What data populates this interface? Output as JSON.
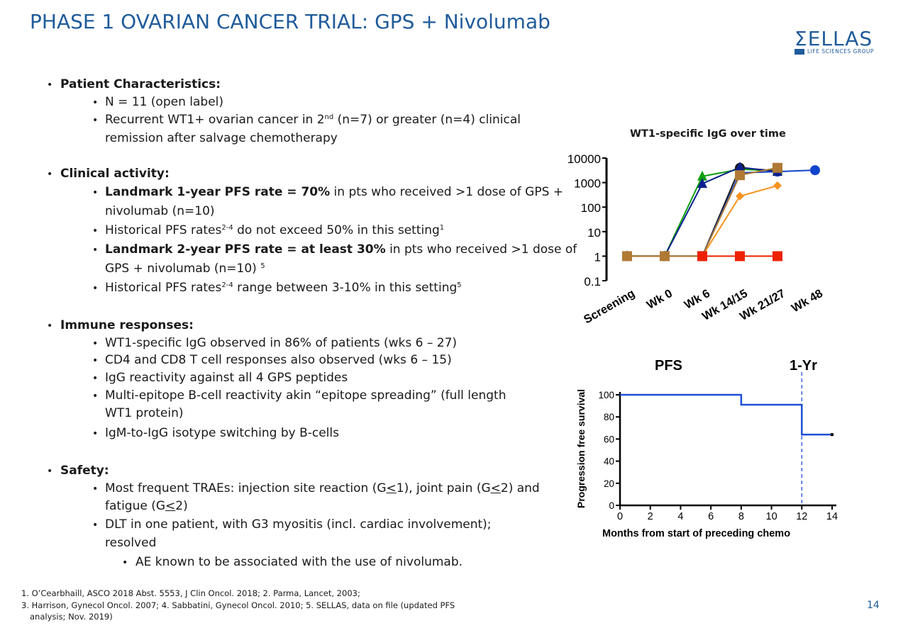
{
  "title": "PHASE 1 OVARIAN CANCER TRIAL: GPS + Nivolumab",
  "logo": {
    "name": "ΣELLAS",
    "subtitle": "LIFE SCIENCES GROUP"
  },
  "patient_characteristics": {
    "heading": "Patient Characteristics:",
    "n": "N = 11 (open label)",
    "recurrent_a": "Recurrent WT1+ ovarian cancer in 2",
    "recurrent_sup": "nd",
    "recurrent_b": " (n=7) or greater (n=4) clinical",
    "recurrent_c": "remission after salvage chemotherapy"
  },
  "clinical_activity": {
    "heading": "Clinical activity:",
    "l1_bold": "Landmark 1-year PFS rate = 70%",
    "l1_rest": " in pts who received >1 dose of GPS +",
    "l1_cont": "nivolumab (n=10)",
    "h1_a": "Historical PFS rates",
    "h1_sup": "2-4",
    "h1_b": " do not exceed 50% in this setting",
    "h1_sup2": "1",
    "l2_bold": "Landmark 2-year PFS rate = at least 30%",
    "l2_rest": " in pts who received >1 dose of",
    "l2_cont": "GPS + nivolumab (n=10) ",
    "l2_sup": "5",
    "h2_a": "Historical PFS rates",
    "h2_sup": "2-4",
    "h2_b": " range between 3-10% in this setting",
    "h2_sup2": "5"
  },
  "immune_responses": {
    "heading": "Immune responses:",
    "i1": "WT1-specific IgG observed in 86% of patients (wks 6 – 27)",
    "i2": "CD4 and CD8 T cell responses also observed (wks 6 – 15)",
    "i3": "IgG reactivity against all 4 GPS peptides",
    "i4": "Multi-epitope B-cell reactivity akin “epitope spreading” (full length",
    "i4_cont": "WT1 protein)",
    "i5": "IgM-to-IgG isotype switching by B-cells"
  },
  "safety": {
    "heading": "Safety:",
    "s1_a": "Most frequent TRAEs: injection site reaction (G",
    "s1_u1": "<",
    "s1_b": "1), joint pain (G",
    "s1_u2": "<",
    "s1_c": "2) and",
    "s1_d": "fatigue (G",
    "s1_u3": "<",
    "s1_e": "2)",
    "s2": "DLT in one patient, with G3 myositis (incl. cardiac involvement);",
    "s2_cont": "resolved",
    "s3": "AE known to be associated with the use of nivolumab."
  },
  "footnotes": {
    "f1": "1. O’Cearbhaill, ASCO 2018 Abst. 5553, J Clin Oncol. 2018; 2. Parma, Lancet, 2003;",
    "f2": "3. Harrison, Gynecol Oncol. 2007; 4. Sabbatini, Gynecol Oncol. 2010; 5. SELLAS, data on file (updated PFS",
    "f3": "analysis; Nov. 2019)"
  },
  "page_number": "14",
  "chart_data": [
    {
      "type": "line",
      "title": "WT1-specific IgG over time",
      "categories": [
        "Screening",
        "Wk 0",
        "Wk 6",
        "Wk 14/15",
        "Wk 21/27",
        "Wk 48"
      ],
      "y_scale": "log",
      "y_ticks": [
        "10000",
        "1000",
        "100",
        "10",
        "1",
        "0.1"
      ],
      "ylim": [
        0.1,
        10000
      ],
      "series": [
        {
          "color": "#1a1a1a",
          "marker": "circle",
          "values": [
            1,
            1,
            1,
            4000,
            3000,
            null
          ]
        },
        {
          "color": "#1144cc",
          "marker": "circle",
          "values": [
            1,
            1,
            1,
            2500,
            2800,
            3200
          ]
        },
        {
          "color": "#0fa00f",
          "marker": "triangle",
          "values": [
            1,
            1,
            1800,
            3500,
            3000,
            null
          ]
        },
        {
          "color": "#0a1f8f",
          "marker": "triangle",
          "values": [
            1,
            1,
            900,
            4200,
            2800,
            null
          ]
        },
        {
          "color": "#f7931e",
          "marker": "diamond",
          "values": [
            1,
            1,
            1,
            280,
            750,
            null
          ]
        },
        {
          "color": "#b07a35",
          "marker": "square",
          "values": [
            1,
            1,
            1,
            2000,
            4000,
            null
          ]
        },
        {
          "color": "#ee2200",
          "marker": "square",
          "values": [
            null,
            null,
            1,
            1,
            1,
            null
          ]
        }
      ]
    },
    {
      "type": "line",
      "title": "PFS",
      "annotation": "1-Yr",
      "xlabel": "Months from start of preceding chemo",
      "ylabel": "Progression free survival",
      "x_ticks": [
        "0",
        "2",
        "4",
        "6",
        "8",
        "10",
        "12",
        "14"
      ],
      "y_ticks": [
        "0",
        "20",
        "40",
        "60",
        "80",
        "100"
      ],
      "xlim": [
        0,
        14
      ],
      "ylim": [
        0,
        100
      ],
      "step_points": [
        [
          0,
          100
        ],
        [
          8,
          100
        ],
        [
          8,
          91
        ],
        [
          12,
          91
        ],
        [
          12,
          64
        ],
        [
          14,
          64
        ]
      ],
      "reference_line_x": 12,
      "color": "#1d4fd6"
    }
  ]
}
